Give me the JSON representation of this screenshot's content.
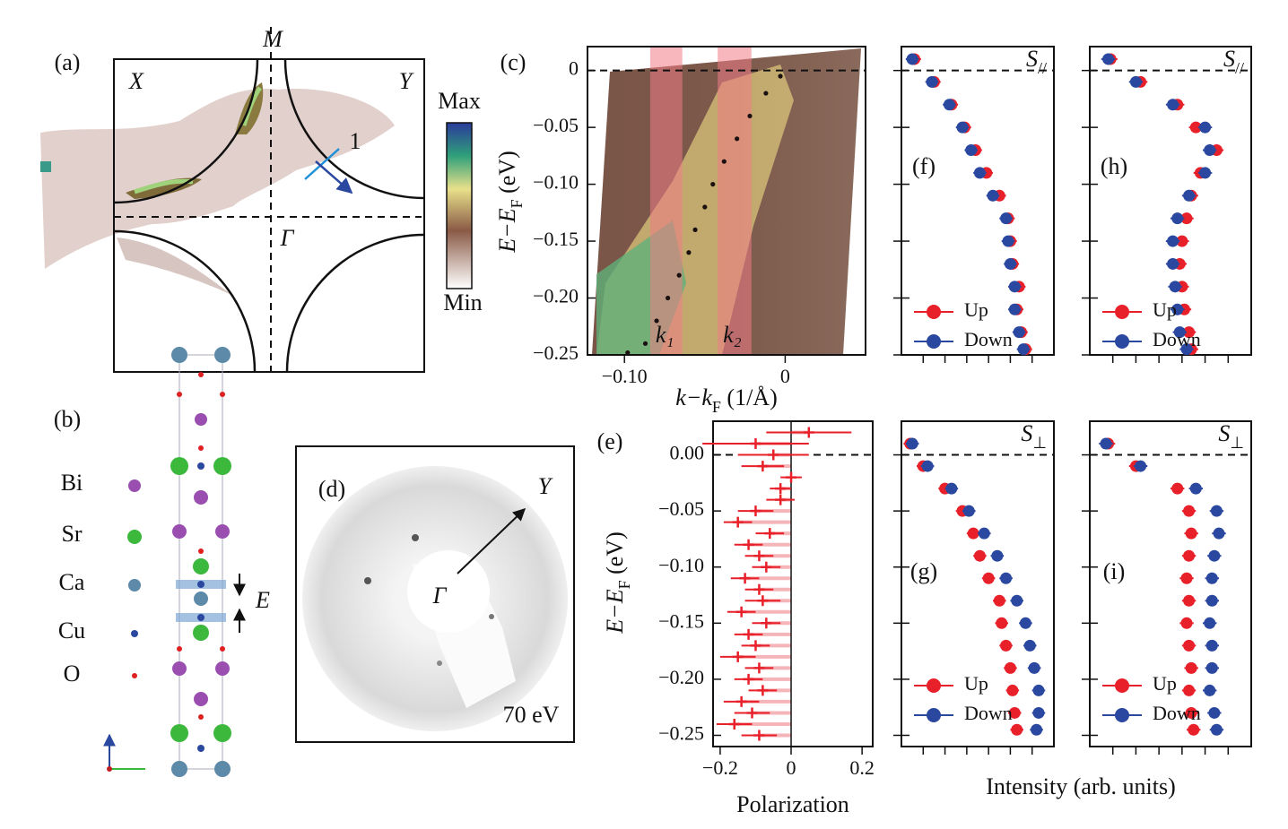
{
  "figure": {
    "a": {
      "label": "(a)",
      "corners": [
        "X",
        "Y"
      ],
      "M": "M",
      "Gamma": "Γ",
      "cut": "1",
      "colorbar": [
        "Max",
        "Min"
      ]
    },
    "b": {
      "label": "(b)",
      "elements": [
        "Bi",
        "Sr",
        "Ca",
        "Cu",
        "O"
      ],
      "field": "E"
    },
    "d": {
      "label": "(d)",
      "Y": "Y",
      "Gamma": "Γ",
      "energy": "70 eV"
    },
    "intensity_label": "Intensity (arb. units)"
  },
  "chart_data": [
    {
      "type": "scatter",
      "label": "(c)",
      "x_label": [
        "k−k",
        "F",
        " (1/Å)"
      ],
      "y_label": [
        "E−E",
        "F",
        " (eV)"
      ],
      "xlim": [
        -0.123,
        0.05
      ],
      "ylim": [
        -0.25,
        0.021
      ],
      "xticks": [
        {
          "value": -0.1,
          "label": "−0.10"
        },
        0
      ],
      "yticks": [
        0,
        {
          "value": -0.05,
          "label": "−0.05"
        },
        {
          "value": -0.1,
          "label": "−0.10"
        },
        {
          "value": -0.15,
          "label": "−0.15"
        },
        {
          "value": -0.2,
          "label": "−0.20"
        },
        {
          "value": -0.25,
          "label": "−0.25"
        }
      ],
      "zero_line": true,
      "image": true,
      "bands": [
        {
          "label": "k₁",
          "range": [
            -0.084,
            -0.064
          ]
        },
        {
          "label": "k₂",
          "range": [
            -0.042,
            -0.021
          ]
        }
      ],
      "band_color": "#f07c86",
      "y": [
        -0.005,
        -0.02,
        -0.04,
        -0.06,
        -0.08,
        -0.1,
        -0.12,
        -0.14,
        -0.16,
        -0.18,
        -0.2,
        -0.22,
        -0.24,
        -0.248
      ],
      "series": [
        {
          "color": "#1a1010",
          "marker": "dot",
          "x": [
            -0.003,
            -0.012,
            -0.022,
            -0.03,
            -0.038,
            -0.045,
            -0.05,
            -0.056,
            -0.06,
            -0.066,
            -0.073,
            -0.08,
            -0.087,
            -0.098
          ]
        }
      ]
    },
    {
      "type": "scatter",
      "label": "(e)",
      "x_label": "Polarization",
      "y_label": [
        "E−E",
        "F",
        " (eV)"
      ],
      "xlim": [
        -0.22,
        0.23
      ],
      "ylim": [
        -0.26,
        0.03
      ],
      "xticks": [
        {
          "value": -0.2,
          "label": "−0.2"
        },
        0,
        0.2
      ],
      "yticks": [
        {
          "value": 0,
          "label": "0.00"
        },
        {
          "value": -0.05,
          "label": "−0.05"
        },
        {
          "value": -0.1,
          "label": "−0.10"
        },
        {
          "value": -0.15,
          "label": "−0.15"
        },
        {
          "value": -0.2,
          "label": "−0.20"
        },
        {
          "value": -0.25,
          "label": "−0.25"
        }
      ],
      "zero_line": true,
      "zero_x_line": true,
      "fill_to_zero": true,
      "y": [
        0.02,
        0.01,
        0,
        -0.01,
        -0.02,
        -0.03,
        -0.04,
        -0.05,
        -0.06,
        -0.07,
        -0.08,
        -0.09,
        -0.1,
        -0.11,
        -0.12,
        -0.13,
        -0.14,
        -0.15,
        -0.16,
        -0.17,
        -0.18,
        -0.19,
        -0.2,
        -0.21,
        -0.22,
        -0.23,
        -0.24,
        -0.25
      ],
      "series": [
        {
          "color": "#e8202a",
          "marker": "plus",
          "x": [
            0.05,
            -0.1,
            -0.05,
            -0.08,
            0.0,
            -0.03,
            -0.03,
            -0.1,
            -0.15,
            -0.06,
            -0.12,
            -0.09,
            -0.07,
            -0.13,
            -0.09,
            -0.08,
            -0.14,
            -0.07,
            -0.12,
            -0.1,
            -0.15,
            -0.09,
            -0.12,
            -0.08,
            -0.14,
            -0.11,
            -0.16,
            -0.09
          ],
          "xerr": [
            0.12,
            0.15,
            0.1,
            0.06,
            0.03,
            0.03,
            0.04,
            0.05,
            0.04,
            0.04,
            0.04,
            0.04,
            0.04,
            0.04,
            0.04,
            0.05,
            0.04,
            0.04,
            0.04,
            0.04,
            0.05,
            0.04,
            0.04,
            0.04,
            0.05,
            0.05,
            0.05,
            0.05
          ]
        }
      ]
    },
    {
      "type": "scatter",
      "label": "(f)",
      "title": [
        "S",
        "//"
      ],
      "xlim": [
        0,
        7
      ],
      "ylim": [
        -0.25,
        0.021
      ],
      "xticks": [
        1,
        2,
        3,
        4,
        5,
        6
      ],
      "yticks": [
        0,
        -0.05,
        -0.1,
        -0.15,
        -0.2,
        -0.25
      ],
      "tick_labels": false,
      "zero_line": true,
      "legend": "lower left",
      "y": [
        0.01,
        -0.01,
        -0.03,
        -0.05,
        -0.07,
        -0.09,
        -0.11,
        -0.13,
        -0.15,
        -0.17,
        -0.19,
        -0.21,
        -0.23,
        -0.245
      ],
      "series": [
        {
          "name": "Up",
          "color": "#e8202a",
          "marker": "circle",
          "x": [
            0.6,
            1.5,
            2.3,
            2.9,
            3.4,
            3.9,
            4.5,
            4.9,
            5.0,
            5.1,
            5.4,
            5.3,
            5.5,
            5.7
          ],
          "xerr": 0.3
        },
        {
          "name": "Down",
          "color": "#2b48a0",
          "marker": "circle",
          "x": [
            0.5,
            1.4,
            2.2,
            2.8,
            3.2,
            3.6,
            4.2,
            4.8,
            4.9,
            5.0,
            5.2,
            5.2,
            5.4,
            5.6
          ],
          "xerr": 0.3
        }
      ]
    },
    {
      "type": "scatter",
      "label": "(h)",
      "title": [
        "S",
        "//"
      ],
      "xlim": [
        0,
        7
      ],
      "ylim": [
        -0.25,
        0.021
      ],
      "xticks": [
        1,
        2,
        3,
        4,
        5,
        6
      ],
      "yticks": [
        0,
        -0.05,
        -0.1,
        -0.15,
        -0.2,
        -0.25
      ],
      "tick_labels": false,
      "zero_line": true,
      "legend": "lower left",
      "y": [
        0.01,
        -0.01,
        -0.03,
        -0.05,
        -0.07,
        -0.09,
        -0.11,
        -0.13,
        -0.15,
        -0.17,
        -0.19,
        -0.21,
        -0.23,
        -0.245
      ],
      "series": [
        {
          "name": "Up",
          "color": "#e8202a",
          "marker": "circle",
          "x": [
            0.9,
            2.2,
            3.8,
            4.6,
            5.5,
            4.8,
            4.4,
            4.2,
            4.0,
            3.9,
            4.0,
            4.1,
            4.3,
            4.4
          ],
          "xerr": 0.3
        },
        {
          "name": "Down",
          "color": "#2b48a0",
          "marker": "circle",
          "x": [
            0.8,
            2.0,
            3.6,
            5.0,
            5.2,
            5.0,
            4.3,
            3.8,
            3.6,
            3.6,
            3.7,
            3.8,
            3.9,
            4.2
          ],
          "xerr": 0.3
        }
      ]
    },
    {
      "type": "scatter",
      "label": "(g)",
      "title": [
        "S",
        "⊥"
      ],
      "xlim": [
        0,
        7
      ],
      "ylim": [
        -0.26,
        0.03
      ],
      "xticks": [
        1,
        2,
        3,
        4,
        5,
        6
      ],
      "yticks": [
        0,
        -0.05,
        -0.1,
        -0.15,
        -0.2,
        -0.25
      ],
      "tick_labels": false,
      "zero_line": true,
      "legend": "lower left",
      "y": [
        0.01,
        -0.01,
        -0.03,
        -0.05,
        -0.07,
        -0.09,
        -0.11,
        -0.13,
        -0.15,
        -0.17,
        -0.19,
        -0.21,
        -0.23,
        -0.245
      ],
      "series": [
        {
          "name": "Up",
          "color": "#e8202a",
          "marker": "circle",
          "x": [
            0.4,
            1.0,
            2.0,
            2.8,
            3.3,
            3.6,
            4.0,
            4.5,
            4.6,
            4.8,
            5.0,
            5.1,
            5.2,
            5.3
          ],
          "xerr": 0.3
        },
        {
          "name": "Down",
          "color": "#2b48a0",
          "marker": "circle",
          "x": [
            0.5,
            1.2,
            2.3,
            3.1,
            3.8,
            4.4,
            4.8,
            5.3,
            5.7,
            5.9,
            6.1,
            6.3,
            6.3,
            6.2
          ],
          "xerr": 0.3
        }
      ]
    },
    {
      "type": "scatter",
      "label": "(i)",
      "title": [
        "S",
        "⊥"
      ],
      "xlim": [
        0,
        7
      ],
      "ylim": [
        -0.26,
        0.03
      ],
      "xticks": [
        1,
        2,
        3,
        4,
        5,
        6
      ],
      "yticks": [
        0,
        -0.05,
        -0.1,
        -0.15,
        -0.2,
        -0.25
      ],
      "tick_labels": false,
      "zero_line": true,
      "legend": "lower left",
      "y": [
        0.01,
        -0.01,
        -0.03,
        -0.05,
        -0.07,
        -0.09,
        -0.11,
        -0.13,
        -0.15,
        -0.17,
        -0.19,
        -0.21,
        -0.23,
        -0.245
      ],
      "series": [
        {
          "name": "Up",
          "color": "#e8202a",
          "marker": "circle",
          "x": [
            0.8,
            2.0,
            3.8,
            4.3,
            4.4,
            4.3,
            4.2,
            4.3,
            4.2,
            4.3,
            4.4,
            4.3,
            4.4,
            4.5
          ],
          "xerr": 0.3
        },
        {
          "name": "Down",
          "color": "#2b48a0",
          "marker": "circle",
          "x": [
            0.7,
            2.2,
            4.6,
            5.5,
            5.6,
            5.4,
            5.3,
            5.3,
            5.2,
            5.3,
            5.3,
            5.2,
            5.4,
            5.5
          ],
          "xerr": 0.3
        }
      ]
    }
  ]
}
